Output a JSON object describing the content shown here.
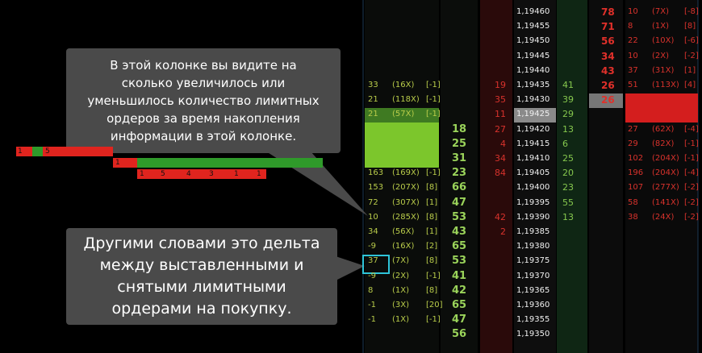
{
  "callouts": [
    {
      "lines": [
        "В этой колонке вы видите на",
        "сколько увеличилось или",
        "уменьшилось количество лимитных",
        "ордеров за время накопления",
        "информации в этой колонке."
      ]
    },
    {
      "lines": [
        "Другими словами это дельта",
        "между выставленными и",
        "снятыми лимитными",
        "ордерами на покупку."
      ]
    }
  ],
  "strips": [
    [
      1,
      5
    ],
    [
      1
    ],
    [
      1,
      5,
      4,
      3,
      1,
      1
    ]
  ],
  "ladder": {
    "rows": [
      {
        "price": "1,19460",
        "delta": null,
        "bid": null,
        "sell": null,
        "buy": null,
        "ask": 78,
        "right": [
          "10",
          "(7X)",
          "[-8]"
        ]
      },
      {
        "price": "1,19455",
        "delta": null,
        "bid": null,
        "sell": null,
        "buy": null,
        "ask": 71,
        "right": [
          "8",
          "(1X)",
          "[8]"
        ]
      },
      {
        "price": "1,19450",
        "delta": null,
        "bid": null,
        "sell": null,
        "buy": null,
        "ask": 56,
        "right": [
          "22",
          "(10X)",
          "[-6]"
        ]
      },
      {
        "price": "1,19445",
        "delta": null,
        "bid": null,
        "sell": null,
        "buy": null,
        "ask": 34,
        "right": [
          "10",
          "(2X)",
          "[-2]"
        ]
      },
      {
        "price": "1,19440",
        "delta": null,
        "bid": null,
        "sell": null,
        "buy": null,
        "ask": 43,
        "right": [
          "37",
          "(31X)",
          "[1]"
        ]
      },
      {
        "price": "1,19435",
        "delta": [
          "33",
          "(16X)",
          "[-1]"
        ],
        "bid": null,
        "sell": 19,
        "buy": 41,
        "ask": 26,
        "right": [
          "51",
          "(113X)",
          "[4]"
        ]
      },
      {
        "price": "1,19430",
        "delta": [
          "21",
          "(118X)",
          "[-1]"
        ],
        "bid": null,
        "sell": 35,
        "buy": 39,
        "ask": 26,
        "right": null
      },
      {
        "price": "1,19425",
        "delta": [
          "21",
          "(57X)",
          "[-1]"
        ],
        "bid": null,
        "sell": 11,
        "buy": 29,
        "ask": null,
        "right": null
      },
      {
        "price": "1,19420",
        "delta": null,
        "bid": 18,
        "sell": 27,
        "buy": 13,
        "ask": null,
        "right": [
          "27",
          "(62X)",
          "[-4]"
        ]
      },
      {
        "price": "1,19415",
        "delta": null,
        "bid": 25,
        "sell": 4,
        "buy": 6,
        "ask": null,
        "right": [
          "29",
          "(82X)",
          "[-1]"
        ]
      },
      {
        "price": "1,19410",
        "delta": null,
        "bid": 31,
        "sell": 34,
        "buy": 25,
        "ask": null,
        "right": [
          "102",
          "(204X)",
          "[-1]"
        ]
      },
      {
        "price": "1,19405",
        "delta": [
          "163",
          "(169X)",
          "[-1]"
        ],
        "bid": 23,
        "sell": 84,
        "buy": 20,
        "ask": null,
        "right": [
          "196",
          "(204X)",
          "[-4]"
        ]
      },
      {
        "price": "1,19400",
        "delta": [
          "153",
          "(207X)",
          "[8]"
        ],
        "bid": 66,
        "sell": null,
        "buy": 23,
        "ask": null,
        "right": [
          "107",
          "(277X)",
          "[-2]"
        ]
      },
      {
        "price": "1,19395",
        "delta": [
          "72",
          "(307X)",
          "[1]"
        ],
        "bid": 47,
        "sell": null,
        "buy": 55,
        "ask": null,
        "right": [
          "58",
          "(141X)",
          "[-2]"
        ]
      },
      {
        "price": "1,19390",
        "delta": [
          "10",
          "(285X)",
          "[8]"
        ],
        "bid": 53,
        "sell": 42,
        "buy": 13,
        "ask": null,
        "right": [
          "38",
          "(24X)",
          "[-2]"
        ]
      },
      {
        "price": "1,19385",
        "delta": [
          "34",
          "(56X)",
          "[1]"
        ],
        "bid": 43,
        "sell": 2,
        "buy": null,
        "ask": null,
        "right": null
      },
      {
        "price": "1,19380",
        "delta": [
          "-9",
          "(16X)",
          "[2]"
        ],
        "bid": 65,
        "sell": null,
        "buy": null,
        "ask": null,
        "right": null
      },
      {
        "price": "1,19375",
        "delta": [
          "37",
          "(7X)",
          "[8]"
        ],
        "bid": 53,
        "sell": null,
        "buy": null,
        "ask": null,
        "right": null
      },
      {
        "price": "1,19370",
        "delta": [
          "-9",
          "(2X)",
          "[-1]"
        ],
        "bid": 41,
        "sell": null,
        "buy": null,
        "ask": null,
        "right": null
      },
      {
        "price": "1,19365",
        "delta": [
          "8",
          "(1X)",
          "[8]"
        ],
        "bid": 42,
        "sell": null,
        "buy": null,
        "ask": null,
        "right": null
      },
      {
        "price": "1,19360",
        "delta": [
          "-1",
          "(3X)",
          "[20]"
        ],
        "bid": 65,
        "sell": null,
        "buy": null,
        "ask": null,
        "right": null
      },
      {
        "price": "1,19355",
        "delta": [
          "-1",
          "(1X)",
          "[-1]"
        ],
        "bid": 47,
        "sell": null,
        "buy": null,
        "ask": null,
        "right": null
      },
      {
        "price": "1,19350",
        "delta": null,
        "bid": 56,
        "sell": null,
        "buy": null,
        "ask": null,
        "right": null
      }
    ]
  }
}
